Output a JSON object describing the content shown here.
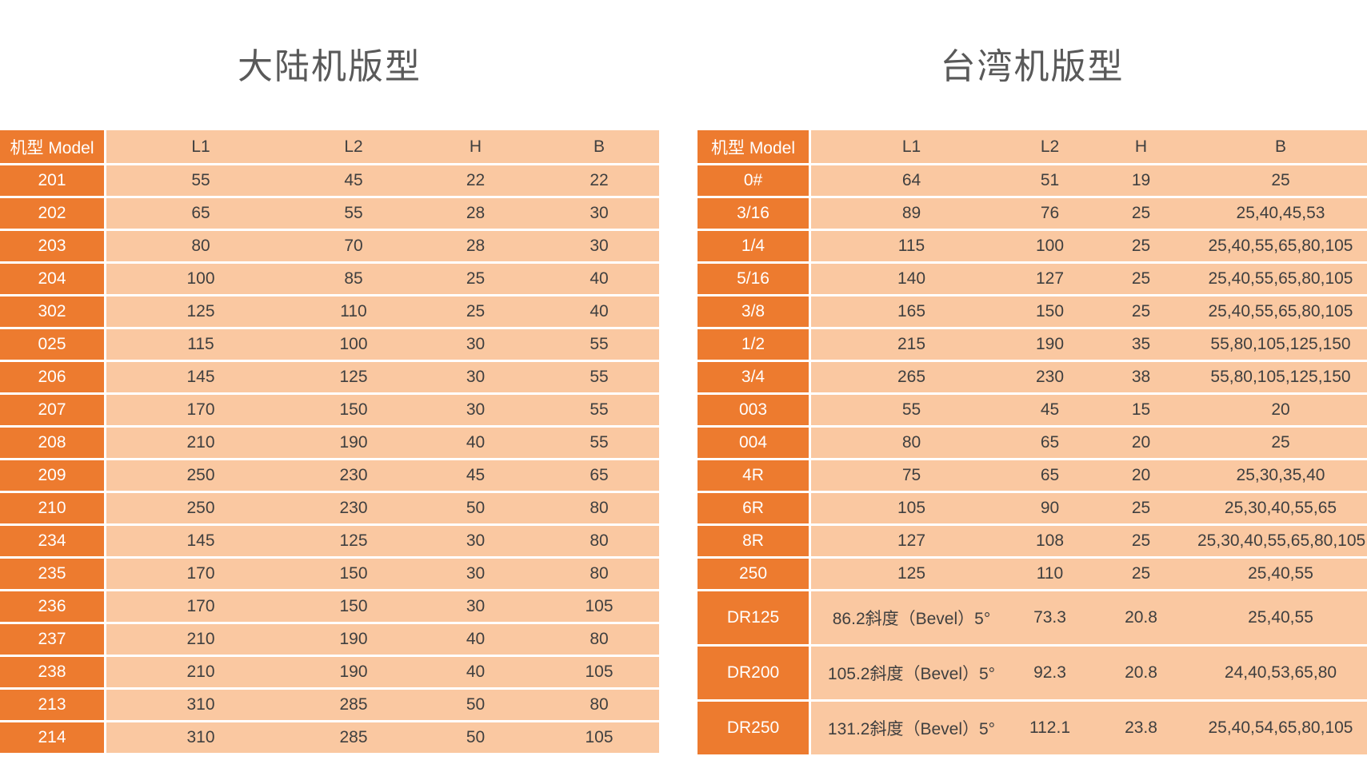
{
  "colors": {
    "accent_dark_orange": "#ED7B2F",
    "accent_light_orange": "#FAC8A1",
    "model_text": "#FFFFFF",
    "value_text": "#3F3F3F",
    "title_text": "#595959",
    "separator": "#FFFFFF",
    "page_background": "#FFFFFF"
  },
  "chart_data": [
    {
      "type": "table",
      "title": "大陆机版型",
      "columns": [
        "机型 Model",
        "L1",
        "L2",
        "H",
        "B"
      ],
      "rows": [
        [
          "201",
          "55",
          "45",
          "22",
          "22"
        ],
        [
          "202",
          "65",
          "55",
          "28",
          "30"
        ],
        [
          "203",
          "80",
          "70",
          "28",
          "30"
        ],
        [
          "204",
          "100",
          "85",
          "25",
          "40"
        ],
        [
          "302",
          "125",
          "110",
          "25",
          "40"
        ],
        [
          "025",
          "115",
          "100",
          "30",
          "55"
        ],
        [
          "206",
          "145",
          "125",
          "30",
          "55"
        ],
        [
          "207",
          "170",
          "150",
          "30",
          "55"
        ],
        [
          "208",
          "210",
          "190",
          "40",
          "55"
        ],
        [
          "209",
          "250",
          "230",
          "45",
          "65"
        ],
        [
          "210",
          "250",
          "230",
          "50",
          "80"
        ],
        [
          "234",
          "145",
          "125",
          "30",
          "80"
        ],
        [
          "235",
          "170",
          "150",
          "30",
          "80"
        ],
        [
          "236",
          "170",
          "150",
          "30",
          "105"
        ],
        [
          "237",
          "210",
          "190",
          "40",
          "80"
        ],
        [
          "238",
          "210",
          "190",
          "40",
          "105"
        ],
        [
          "213",
          "310",
          "285",
          "50",
          "80"
        ],
        [
          "214",
          "310",
          "285",
          "50",
          "105"
        ]
      ]
    },
    {
      "type": "table",
      "title": "台湾机版型",
      "columns": [
        "机型 Model",
        "L1",
        "L2",
        "H",
        "B"
      ],
      "tall_rows": [
        "DR125",
        "DR200",
        "DR250"
      ],
      "rows": [
        [
          "0#",
          "64",
          "51",
          "19",
          "25"
        ],
        [
          "3/16",
          "89",
          "76",
          "25",
          "25,40,45,53"
        ],
        [
          "1/4",
          "115",
          "100",
          "25",
          "25,40,55,65,80,105"
        ],
        [
          "5/16",
          "140",
          "127",
          "25",
          "25,40,55,65,80,105"
        ],
        [
          "3/8",
          "165",
          "150",
          "25",
          "25,40,55,65,80,105"
        ],
        [
          "1/2",
          "215",
          "190",
          "35",
          "55,80,105,125,150"
        ],
        [
          "3/4",
          "265",
          "230",
          "38",
          "55,80,105,125,150"
        ],
        [
          "003",
          "55",
          "45",
          "15",
          "20"
        ],
        [
          "004",
          "80",
          "65",
          "20",
          "25"
        ],
        [
          "4R",
          "75",
          "65",
          "20",
          "25,30,35,40"
        ],
        [
          "6R",
          "105",
          "90",
          "25",
          "25,30,40,55,65"
        ],
        [
          "8R",
          "127",
          "108",
          "25",
          "25,30,40,55,65,80,105"
        ],
        [
          "250",
          "125",
          "110",
          "25",
          "25,40,55"
        ],
        [
          "DR125",
          "86.2斜度（Bevel）5°",
          "73.3",
          "20.8",
          "25,40,55"
        ],
        [
          "DR200",
          "105.2斜度（Bevel）5°",
          "92.3",
          "20.8",
          "24,40,53,65,80"
        ],
        [
          "DR250",
          "131.2斜度（Bevel）5°",
          "112.1",
          "23.8",
          "25,40,54,65,80,105"
        ]
      ]
    }
  ]
}
